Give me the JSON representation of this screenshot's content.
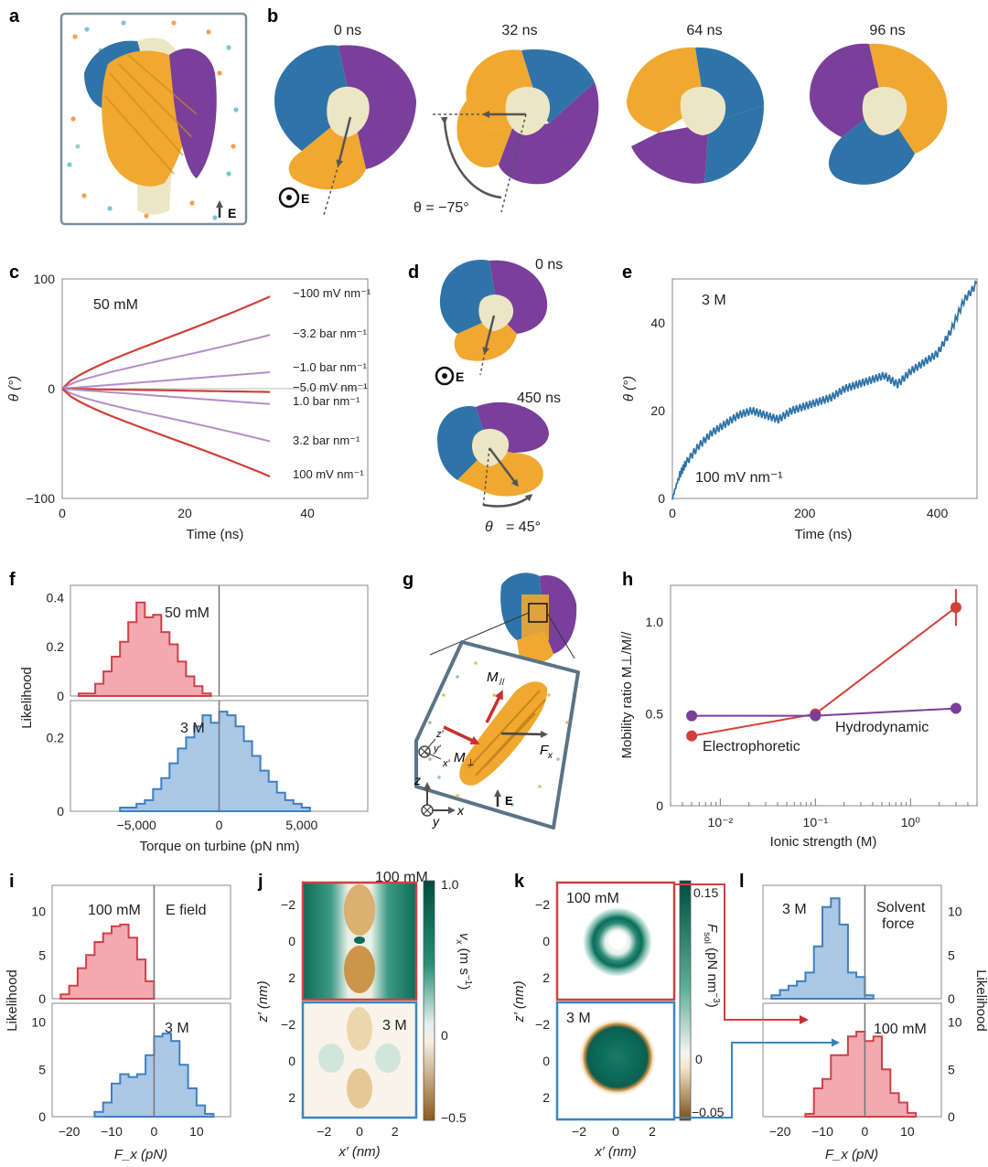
{
  "figure": {
    "panel_labels": [
      "a",
      "b",
      "c",
      "d",
      "e",
      "f",
      "g",
      "h",
      "i",
      "j",
      "k",
      "l"
    ],
    "colors": {
      "blue": "#2f74a8",
      "orange": "#f0a830",
      "purple": "#7a3f9a",
      "cream": "#ece6c4",
      "red": "#d04038",
      "lilac": "#b58cc8",
      "hist_red_fill": "#f2aab0",
      "hist_red_line": "#d04048",
      "hist_blue_fill": "#a9c8e6",
      "hist_blue_line": "#3f7fbf",
      "teal": "#0b6b5a",
      "brown": "#8a5a1c",
      "frame": "#5a7486"
    },
    "panel_a": {
      "e_label": "E"
    },
    "panel_b": {
      "times": [
        "0 ns",
        "32 ns",
        "64 ns",
        "96 ns"
      ],
      "e_label": "E",
      "angle": "θ = −75°"
    },
    "panel_d": {
      "times": [
        "0 ns",
        "450 ns"
      ],
      "e_label": "E",
      "angle_sym": "θ",
      "angle_val": "= 45°"
    },
    "panel_g": {
      "m_par": "M",
      "m_par_sub": "//",
      "m_perp": "M",
      "m_perp_sub": "⊥",
      "f_label": "F",
      "f_sub": "x",
      "e_label": "E",
      "axes": [
        "z",
        "x",
        "y"
      ],
      "local_axes": [
        "z′",
        "y′",
        "x′"
      ]
    },
    "panel_j": {
      "cbar_label": "v",
      "cbar_sub": "x",
      "cbar_unit": " (m s",
      "cbar_unit_sup": "−1",
      "cbar_unit_end": ")"
    },
    "panel_k": {
      "cbar_label": "F",
      "cbar_sub": "sol",
      "cbar_unit": " (pN nm",
      "cbar_unit_sup": "−3",
      "cbar_unit_end": ")"
    }
  },
  "chart_data": [
    {
      "panel": "c",
      "type": "line",
      "annotation": "50 mM",
      "xlabel": "Time (ns)",
      "ylabel": "θ (°)",
      "xlim": [
        0,
        50
      ],
      "ylim": [
        -100,
        100
      ],
      "xticks": [
        "0",
        "20",
        "40"
      ],
      "yticks": [
        "−100",
        "0",
        "100"
      ],
      "series": [
        {
          "name": "−100 mV nm⁻¹",
          "color": "red",
          "x": [
            0,
            34
          ],
          "y": [
            0,
            84
          ]
        },
        {
          "name": "−3.2 bar nm⁻¹",
          "color": "lilac",
          "x": [
            0,
            34
          ],
          "y": [
            0,
            49
          ]
        },
        {
          "name": "−1.0 bar nm⁻¹",
          "color": "lilac",
          "x": [
            0,
            34
          ],
          "y": [
            0,
            15
          ]
        },
        {
          "name": "−5.0 mV nm⁻¹",
          "color": "red",
          "x": [
            0,
            34
          ],
          "y": [
            0,
            -3
          ]
        },
        {
          "name": "1.0 bar nm⁻¹",
          "color": "lilac",
          "x": [
            0,
            34
          ],
          "y": [
            0,
            -14
          ]
        },
        {
          "name": "3.2 bar nm⁻¹",
          "color": "lilac",
          "x": [
            0,
            34
          ],
          "y": [
            0,
            -48
          ]
        },
        {
          "name": "100 mV nm⁻¹",
          "color": "red",
          "x": [
            0,
            34
          ],
          "y": [
            0,
            -80
          ]
        }
      ]
    },
    {
      "panel": "e",
      "type": "line",
      "annotations": [
        "3 M",
        "100 mV nm⁻¹"
      ],
      "xlabel": "Time (ns)",
      "ylabel": "θ (°)",
      "xlim": [
        0,
        460
      ],
      "ylim": [
        0,
        50
      ],
      "xticks": [
        "0",
        "200",
        "400"
      ],
      "yticks": [
        "0",
        "20",
        "40"
      ],
      "series": [
        {
          "color": "blue",
          "x": [
            0,
            10,
            20,
            40,
            60,
            80,
            100,
            120,
            140,
            160,
            180,
            200,
            220,
            240,
            260,
            280,
            300,
            320,
            340,
            360,
            380,
            400,
            420,
            440,
            460
          ],
          "y": [
            0,
            5,
            8,
            12,
            15,
            17,
            19,
            20,
            19,
            18,
            20,
            21,
            22,
            23,
            25,
            26,
            27,
            28,
            26,
            29,
            31,
            33,
            38,
            45,
            49
          ]
        }
      ]
    },
    {
      "panel": "f",
      "type": "histogram",
      "xlabel": "Torque on turbine (pN nm)",
      "ylabel": "Likelihood",
      "xticks": [
        "−5,000",
        "0",
        "5,000"
      ],
      "subplots": [
        {
          "label": "50 mM",
          "color": "red",
          "ylim": [
            0,
            0.45
          ],
          "yticks": [
            "0",
            "0.2",
            "0.4"
          ],
          "bin_edges_k": [
            -8.5,
            -7.5,
            -7,
            -6.5,
            -6,
            -5.5,
            -5,
            -4.5,
            -4,
            -3.5,
            -3,
            -2.5,
            -2,
            -1.5,
            -1,
            -0.5
          ],
          "values": [
            0.01,
            0.05,
            0.1,
            0.16,
            0.22,
            0.3,
            0.38,
            0.32,
            0.33,
            0.26,
            0.21,
            0.14,
            0.08,
            0.04,
            0.01
          ]
        },
        {
          "label": "3 M",
          "color": "blue",
          "ylim": [
            0,
            0.3
          ],
          "yticks": [
            "0",
            "0.2"
          ],
          "bin_edges_k": [
            -6,
            -5,
            -4.5,
            -4,
            -3.5,
            -3,
            -2.5,
            -2,
            -1.5,
            -1,
            -0.5,
            0,
            0.5,
            1,
            1.5,
            2,
            2.5,
            3,
            3.5,
            4,
            4.5,
            5,
            5.5
          ],
          "values": [
            0.01,
            0.02,
            0.03,
            0.06,
            0.09,
            0.13,
            0.17,
            0.2,
            0.23,
            0.26,
            0.24,
            0.27,
            0.26,
            0.23,
            0.19,
            0.15,
            0.11,
            0.08,
            0.05,
            0.03,
            0.02,
            0.01
          ]
        }
      ]
    },
    {
      "panel": "h",
      "type": "line",
      "xlabel": "Ionic strength (M)",
      "ylabel": "Mobility ratio M⊥/M//",
      "xscale": "log",
      "xlim": [
        0.003,
        5
      ],
      "ylim": [
        0,
        1.2
      ],
      "xticks": [
        "10⁻²",
        "10⁻¹",
        "10⁰"
      ],
      "yticks": [
        "0",
        "0.5",
        "1.0"
      ],
      "series": [
        {
          "name": "Electrophoretic",
          "color": "red",
          "x": [
            0.005,
            0.1,
            3
          ],
          "y": [
            0.38,
            0.5,
            1.08
          ],
          "yerr": [
            0,
            0,
            0.1
          ]
        },
        {
          "name": "Hydrodynamic",
          "color": "purple",
          "x": [
            0.005,
            0.1,
            3
          ],
          "y": [
            0.49,
            0.49,
            0.53
          ]
        }
      ]
    },
    {
      "panel": "i",
      "type": "histogram",
      "xlabel": "F_x (pN)",
      "ylabel": "Likelihood",
      "xticks": [
        "−20",
        "−10",
        "0",
        "10"
      ],
      "subplots": [
        {
          "label": "100 mM",
          "extra_label": "E field",
          "color": "red",
          "ylim": [
            0,
            13
          ],
          "yticks": [
            "0",
            "5",
            "10"
          ],
          "bin_edges": [
            -22,
            -20,
            -18,
            -16,
            -14,
            -12,
            -10,
            -8,
            -6,
            -4,
            -2,
            0
          ],
          "values": [
            0.5,
            1.5,
            3.5,
            5,
            6.5,
            7.5,
            8.3,
            8.5,
            7,
            4.5,
            2
          ]
        },
        {
          "label": "3 M",
          "color": "blue",
          "ylim": [
            0,
            12
          ],
          "yticks": [
            "0",
            "5",
            "10"
          ],
          "bin_edges": [
            -14,
            -12,
            -10,
            -8,
            -6,
            -4,
            -2,
            0,
            2,
            4,
            6,
            8,
            10,
            12,
            14
          ],
          "values": [
            0.5,
            1.5,
            3.5,
            4.5,
            4.2,
            4.5,
            6.5,
            8.5,
            8.8,
            8,
            5.5,
            3,
            1.2,
            0.3
          ]
        }
      ]
    },
    {
      "panel": "j",
      "type": "heatmap",
      "xlabel": "x′ (nm)",
      "ylabel": "z′ (nm)",
      "xticks": [
        "−2",
        "0",
        "2"
      ],
      "yticks": [
        "−2",
        "0",
        "2"
      ],
      "maps": [
        {
          "label": "100 mM"
        },
        {
          "label": "3 M"
        }
      ],
      "colorbar": {
        "ticks": [
          "1.0",
          "0",
          "−0.5"
        ],
        "range": [
          -0.5,
          1.0
        ]
      }
    },
    {
      "panel": "k",
      "type": "heatmap",
      "xlabel": "x′ (nm)",
      "ylabel": "z′ (nm)",
      "xticks": [
        "−2",
        "0",
        "2"
      ],
      "yticks": [
        "−2",
        "0",
        "2"
      ],
      "maps": [
        {
          "label": "100 mM"
        },
        {
          "label": "3 M"
        }
      ],
      "colorbar": {
        "ticks": [
          "0.15",
          "0",
          "−0.05"
        ],
        "range": [
          -0.05,
          0.15
        ]
      }
    },
    {
      "panel": "l",
      "type": "histogram",
      "xlabel": "F_x (pN)",
      "ylabel": "Likelihood",
      "xticks": [
        "−20",
        "−10",
        "0",
        "10"
      ],
      "subplots": [
        {
          "label": "3 M",
          "extra_label": "Solvent force",
          "color": "blue",
          "ylim": [
            0,
            13
          ],
          "yticks": [
            "0",
            "5",
            "10"
          ],
          "bin_edges": [
            -22,
            -20,
            -18,
            -16,
            -14,
            -12,
            -10,
            -8,
            -6,
            -4,
            -2,
            0,
            2
          ],
          "values": [
            0.4,
            1,
            1.5,
            2,
            3,
            6,
            10.5,
            11.5,
            8.5,
            3,
            2.5,
            0.4
          ]
        },
        {
          "label": "100 mM",
          "color": "red",
          "ylim": [
            0,
            12
          ],
          "yticks": [
            "0",
            "5",
            "10"
          ],
          "bin_edges": [
            -14,
            -12,
            -10,
            -8,
            -6,
            -4,
            -2,
            0,
            2,
            4,
            6,
            8,
            10,
            12
          ],
          "values": [
            0.3,
            3,
            4,
            6.5,
            6.5,
            8.5,
            9,
            8,
            8.5,
            5,
            2.5,
            1.5,
            0.4
          ]
        }
      ]
    }
  ]
}
